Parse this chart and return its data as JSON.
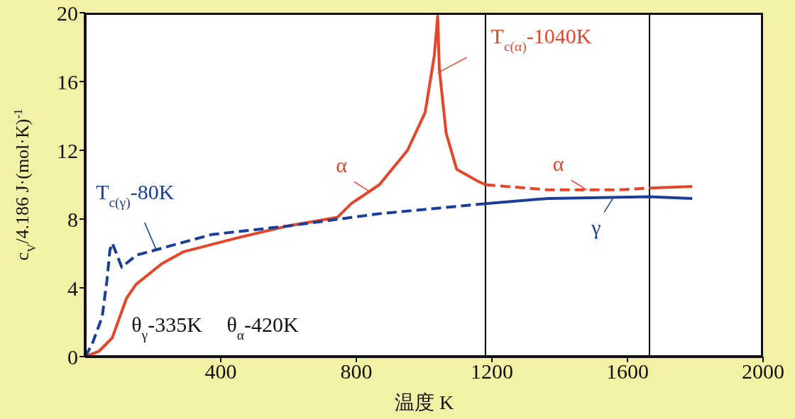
{
  "chart_data": {
    "type": "line",
    "xlabel": "温度 K",
    "ylabel": "c$_{V}$/4.186 J·(mol·K)$^{-1}$",
    "xlim": [
      0,
      2000
    ],
    "xticks": [
      400,
      800,
      1200,
      1600,
      2000
    ],
    "ylim": [
      0,
      20
    ],
    "yticks": [
      0,
      4,
      8,
      12,
      16,
      20
    ],
    "marker": "none",
    "series": [
      {
        "color": "#e4452b",
        "line_style": "solid",
        "x": [
          0,
          40,
          80,
          122,
          150,
          226,
          290,
          448,
          597,
          744,
          785,
          868,
          951,
          1003,
          1030,
          1040,
          1045,
          1065,
          1096,
          1159,
          1181
        ],
        "values": [
          0,
          0.3,
          1.1,
          3.4,
          4.2,
          5.4,
          6.1,
          6.9,
          7.6,
          8.1,
          8.9,
          10.0,
          12.0,
          14.2,
          17.5,
          19.8,
          16.7,
          13.0,
          10.9,
          10.2,
          10.0
        ]
      },
      {
        "color": "#e4452b",
        "line_style": "dashed",
        "x": [
          1181,
          1366,
          1573,
          1665
        ],
        "values": [
          10.0,
          9.7,
          9.7,
          9.8
        ]
      },
      {
        "color": "#e4452b",
        "line_style": "solid",
        "x": [
          1665,
          1791
        ],
        "values": [
          9.8,
          9.9
        ]
      },
      {
        "color": "#1b3f98",
        "line_style": "dashed",
        "x": [
          0,
          20,
          50,
          64,
          73,
          80,
          108,
          151,
          373,
          600,
          862,
          1181
        ],
        "values": [
          0,
          0.7,
          2.3,
          4.4,
          6.2,
          6.6,
          5.2,
          5.9,
          7.1,
          7.6,
          8.3,
          8.9
        ]
      },
      {
        "color": "#1b3f98",
        "line_style": "solid",
        "x": [
          1181,
          1366,
          1665,
          1791
        ],
        "values": [
          8.9,
          9.2,
          9.3,
          9.2
        ]
      }
    ],
    "ref_lines": [
      {
        "axis": "x",
        "value": 1181,
        "color": "#000000"
      },
      {
        "axis": "x",
        "value": 1665,
        "color": "#000000"
      }
    ],
    "annotations": [
      {
        "text": "T$_{c(α)}$-1040K",
        "x": 1040,
        "y": 16.5
      },
      {
        "text": "T$_{c(γ)}$-80K",
        "x": 210,
        "y": 6.2
      },
      "θ$_{γ}$-335K",
      "θ$_{α}$-420K",
      {
        "text": "α",
        "x": 840,
        "y": 9.6
      },
      {
        "text": "α",
        "x": 1480,
        "y": 9.7
      },
      {
        "text": "γ",
        "x": 1560,
        "y": 9.3
      }
    ]
  }
}
